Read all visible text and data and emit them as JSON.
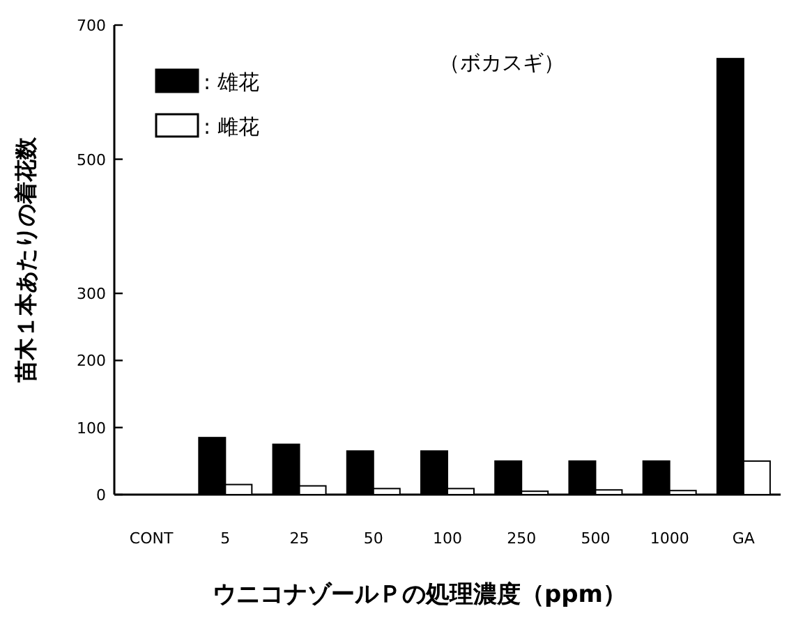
{
  "chart_data": {
    "type": "bar",
    "title": "（ボカスギ）",
    "ylabel": "苗木１本あたりの着花数",
    "xlabel": "ウニコナゾールＰの処理濃度（ppm）",
    "categories": [
      "CONT",
      "5",
      "25",
      "50",
      "100",
      "250",
      "500",
      "1000",
      "GA"
    ],
    "series": [
      {
        "name": ": 雄花",
        "color": "#000000",
        "values": [
          0,
          85,
          75,
          65,
          65,
          50,
          50,
          50,
          650
        ]
      },
      {
        "name": ": 雌花",
        "color": "#ffffff",
        "values": [
          0,
          15,
          13,
          9,
          9,
          5,
          7,
          6,
          50
        ]
      }
    ],
    "ylim": [
      0,
      700
    ],
    "yticks": [
      0,
      100,
      200,
      300,
      500,
      700
    ],
    "legend": "top left",
    "grid": false
  }
}
